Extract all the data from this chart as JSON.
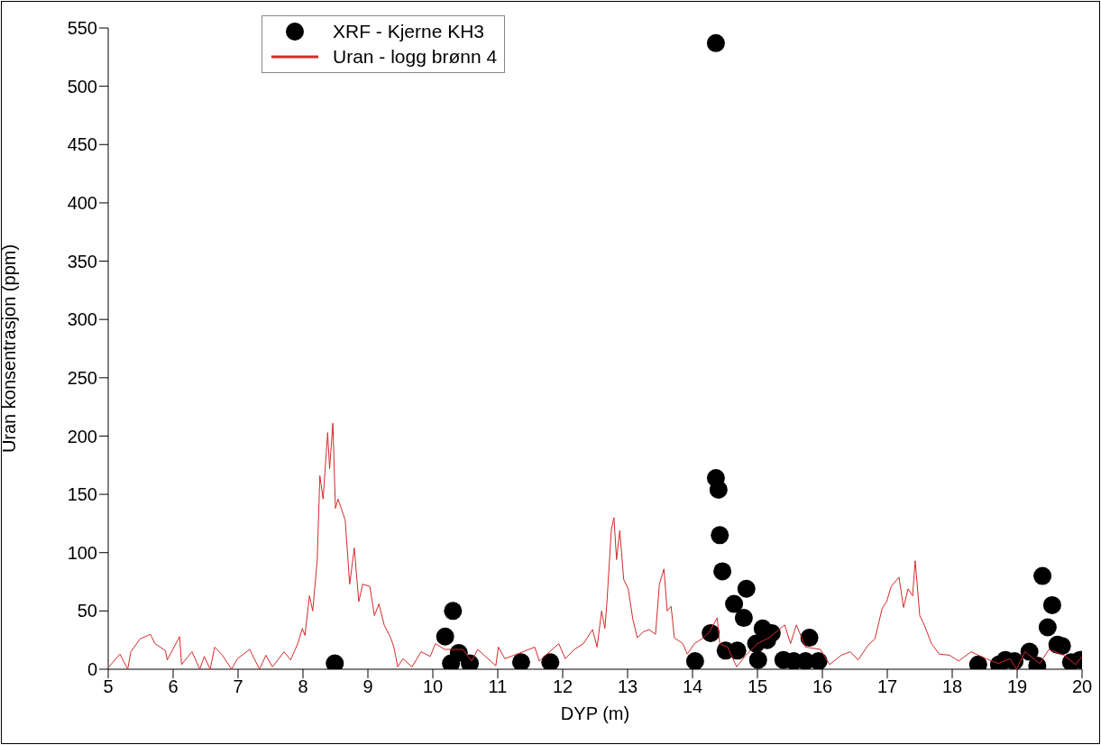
{
  "chart_data": {
    "type": "line",
    "xlabel": "DYP (m)",
    "ylabel": "Uran konsentrasjon (ppm)",
    "xlim": [
      5,
      20
    ],
    "ylim": [
      0,
      550
    ],
    "xticks": [
      5,
      6,
      7,
      8,
      9,
      10,
      11,
      12,
      13,
      14,
      15,
      16,
      17,
      18,
      19,
      20
    ],
    "yticks": [
      0,
      50,
      100,
      150,
      200,
      250,
      300,
      350,
      400,
      450,
      500,
      550
    ],
    "grid": false,
    "legend": "top left",
    "series": [
      {
        "name": "XRF  - Kjerne  KH3",
        "type": "scatter",
        "marker": "circle",
        "color": "#000000",
        "x": [
          8.49,
          10.19,
          10.31,
          10.28,
          10.4,
          10.57,
          11.36,
          11.81,
          14.04,
          14.28,
          14.36,
          14.36,
          14.4,
          14.42,
          14.46,
          14.51,
          14.64,
          14.69,
          14.79,
          14.83,
          14.98,
          15.01,
          15.08,
          15.15,
          15.22,
          15.4,
          15.56,
          15.74,
          15.8,
          15.94,
          18.4,
          18.72,
          18.82,
          18.96,
          19.19,
          19.31,
          19.39,
          19.47,
          19.54,
          19.62,
          19.69,
          19.83,
          19.97
        ],
        "values": [
          5,
          28,
          50,
          5,
          14,
          5,
          6,
          6,
          7,
          31,
          537,
          164,
          154,
          115,
          84,
          16,
          56,
          16,
          44,
          69,
          22,
          8,
          35,
          25,
          31,
          8,
          7,
          7,
          27,
          7,
          4,
          4,
          8,
          7,
          15,
          3,
          80,
          36,
          55,
          21,
          20,
          6,
          8
        ]
      },
      {
        "name": "Uran  - logg brønn 4",
        "type": "line",
        "marker": "none",
        "color": "#d42a2a",
        "x": [
          5.01,
          5.18,
          5.3,
          5.35,
          5.49,
          5.65,
          5.72,
          5.88,
          5.91,
          6.1,
          6.13,
          6.29,
          6.41,
          6.48,
          6.57,
          6.64,
          6.76,
          6.9,
          6.99,
          7.18,
          7.33,
          7.43,
          7.53,
          7.71,
          7.81,
          7.92,
          7.99,
          8.03,
          8.1,
          8.15,
          8.22,
          8.26,
          8.31,
          8.38,
          8.41,
          8.46,
          8.5,
          8.54,
          8.65,
          8.72,
          8.79,
          8.86,
          8.92,
          9.03,
          9.1,
          9.17,
          9.25,
          9.35,
          9.4,
          9.46,
          9.54,
          9.68,
          9.82,
          9.96,
          10.04,
          10.18,
          10.46,
          10.6,
          10.69,
          10.97,
          11.01,
          11.11,
          11.39,
          11.57,
          11.64,
          11.94,
          12.04,
          12.18,
          12.32,
          12.46,
          12.53,
          12.6,
          12.65,
          12.68,
          12.75,
          12.79,
          12.83,
          12.88,
          12.94,
          13.01,
          13.08,
          13.15,
          13.24,
          13.33,
          13.43,
          13.49,
          13.56,
          13.61,
          13.67,
          13.72,
          13.85,
          13.92,
          14.03,
          14.17,
          14.26,
          14.38,
          14.42,
          14.54,
          14.68,
          14.82,
          15.0,
          15.18,
          15.42,
          15.51,
          15.6,
          15.74,
          15.97,
          16.11,
          16.29,
          16.43,
          16.55,
          16.71,
          16.81,
          16.92,
          16.99,
          17.06,
          17.18,
          17.25,
          17.32,
          17.39,
          17.43,
          17.5,
          17.57,
          17.68,
          17.8,
          17.96,
          18.1,
          18.29,
          18.52,
          18.71,
          18.89,
          18.99,
          19.12,
          19.35,
          19.49,
          19.72,
          19.9,
          20.0
        ],
        "values": [
          2,
          13,
          0,
          15,
          26,
          30,
          22,
          16,
          8,
          28,
          4,
          15,
          0,
          11,
          0,
          19,
          12,
          0,
          9,
          17,
          0,
          12,
          2,
          15,
          8,
          22,
          35,
          29,
          63,
          50,
          94,
          166,
          146,
          203,
          172,
          211,
          138,
          146,
          128,
          73,
          104,
          58,
          73,
          71,
          46,
          56,
          38,
          27,
          19,
          2,
          9,
          2,
          15,
          11,
          22,
          17,
          17,
          7,
          17,
          3,
          19,
          9,
          15,
          19,
          7,
          22,
          9,
          17,
          22,
          34,
          19,
          50,
          35,
          56,
          120,
          130,
          94,
          119,
          77,
          69,
          43,
          27,
          32,
          34,
          30,
          73,
          86,
          50,
          54,
          27,
          22,
          13,
          22,
          27,
          32,
          44,
          22,
          19,
          2,
          12,
          22,
          27,
          38,
          22,
          38,
          19,
          17,
          4,
          12,
          15,
          8,
          21,
          26,
          52,
          58,
          71,
          79,
          53,
          69,
          63,
          93,
          46,
          38,
          22,
          13,
          12,
          7,
          15,
          9,
          5,
          9,
          0,
          15,
          5,
          17,
          12,
          4,
          11
        ]
      }
    ]
  }
}
